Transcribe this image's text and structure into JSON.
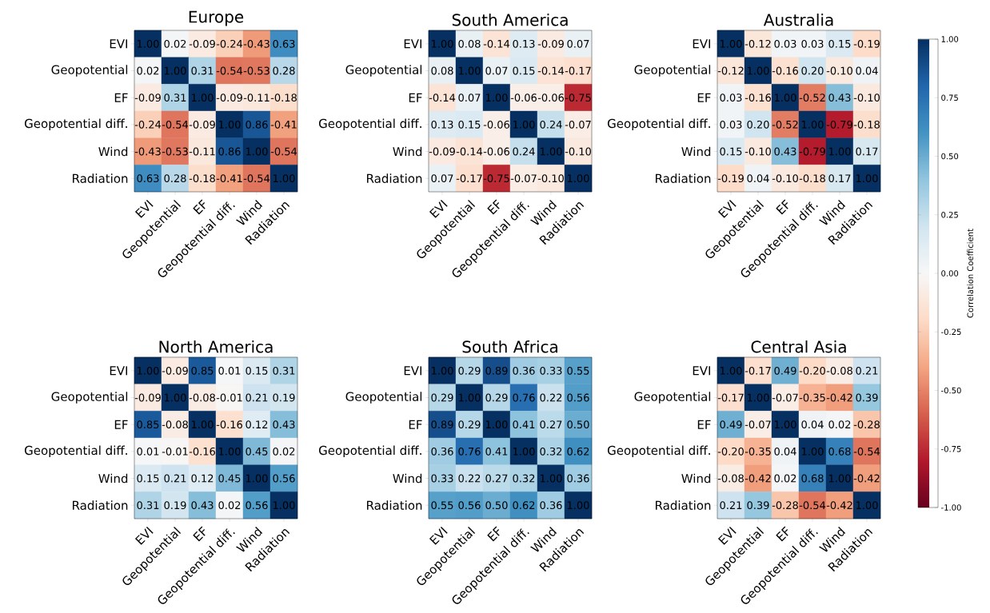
{
  "chart_data": [
    {
      "type": "heatmap",
      "title": "Europe",
      "categories": [
        "EVI",
        "Geopotential",
        "EF",
        "Geopotential diff.",
        "Wind",
        "Radiation"
      ],
      "y_categories": [
        "EVI",
        "Geopotential",
        "EF",
        "Geopotential diff.",
        "Wind",
        "Radiation"
      ],
      "cells": [
        [
          1.0,
          0.02,
          -0.09,
          -0.24,
          -0.43,
          0.63
        ],
        [
          0.02,
          1.0,
          0.31,
          -0.54,
          -0.53,
          0.28
        ],
        [
          -0.09,
          0.31,
          1.0,
          -0.09,
          -0.11,
          -0.18
        ],
        [
          -0.24,
          -0.54,
          -0.09,
          1.0,
          0.86,
          -0.41
        ],
        [
          -0.43,
          -0.53,
          -0.11,
          0.86,
          1.0,
          -0.54
        ],
        [
          0.63,
          0.28,
          -0.18,
          -0.41,
          -0.54,
          1.0
        ]
      ],
      "cell_labels": [
        [
          "1.00",
          "0.02",
          "-0.09",
          "-0.24",
          "-0.43",
          "0.63"
        ],
        [
          "0.02",
          "1.00",
          "0.31",
          "-0.54",
          "-0.53",
          "0.28"
        ],
        [
          "-0.09",
          "0.31",
          "1.00",
          "-0.09",
          "-0.11",
          "-0.18"
        ],
        [
          "-0.24",
          "-0.54",
          "-0.09",
          "1.00",
          "0.86",
          "-0.41"
        ],
        [
          "-0.43",
          "-0.53",
          "-0.11",
          "0.86",
          "1.00",
          "-0.54"
        ],
        [
          "0.63",
          "0.28",
          "-0.18",
          "-0.41",
          "-0.54",
          "1.00"
        ]
      ]
    },
    {
      "type": "heatmap",
      "title": "South America",
      "categories": [
        "EVI",
        "Geopotential",
        "EF",
        "Geopotential diff.",
        "Wind",
        "Radiation"
      ],
      "y_categories": [
        "EVI",
        "Geopotential",
        "EF",
        "Geopotential diff.",
        "Wind",
        "Radiation"
      ],
      "cells": [
        [
          1.0,
          0.08,
          -0.14,
          0.13,
          -0.09,
          0.07
        ],
        [
          0.08,
          1.0,
          0.07,
          0.15,
          -0.14,
          -0.17
        ],
        [
          -0.14,
          0.07,
          1.0,
          -0.06,
          -0.06,
          -0.75
        ],
        [
          0.13,
          0.15,
          -0.06,
          1.0,
          0.24,
          -0.07
        ],
        [
          -0.09,
          -0.14,
          -0.06,
          0.24,
          1.0,
          -0.1
        ],
        [
          0.07,
          -0.17,
          -0.75,
          -0.07,
          -0.1,
          1.0
        ]
      ],
      "cell_labels": [
        [
          "1.00",
          "0.08",
          "-0.14",
          "0.13",
          "-0.09",
          "0.07"
        ],
        [
          "0.08",
          "1.00",
          "0.07",
          "0.15",
          "-0.14",
          "-0.17"
        ],
        [
          "-0.14",
          "0.07",
          "1.00",
          "-0.06",
          "-0.06",
          "-0.75"
        ],
        [
          "0.13",
          "0.15",
          "-0.06",
          "1.00",
          "0.24",
          "-0.07"
        ],
        [
          "-0.09",
          "-0.14",
          "-0.06",
          "0.24",
          "1.00",
          "-0.10"
        ],
        [
          "0.07",
          "-0.17",
          "-0.75",
          "-0.07",
          "-0.10",
          "1.00"
        ]
      ]
    },
    {
      "type": "heatmap",
      "title": "Australia",
      "categories": [
        "EVI",
        "Geopotential",
        "EF",
        "Geopotential diff.",
        "Wind",
        "Radiation"
      ],
      "y_categories": [
        "EVI",
        "Geopotential",
        "EF",
        "Geopotential diff.",
        "Wind",
        "Radiation"
      ],
      "cells": [
        [
          1.0,
          -0.12,
          0.03,
          0.03,
          0.15,
          -0.19
        ],
        [
          -0.12,
          1.0,
          -0.16,
          0.2,
          -0.1,
          0.04
        ],
        [
          0.03,
          -0.16,
          1.0,
          -0.52,
          0.43,
          -0.1
        ],
        [
          0.03,
          0.2,
          -0.52,
          1.0,
          -0.79,
          -0.18
        ],
        [
          0.15,
          -0.1,
          0.43,
          -0.79,
          1.0,
          0.17
        ],
        [
          -0.19,
          0.04,
          -0.1,
          -0.18,
          0.17,
          1.0
        ]
      ],
      "cell_labels": [
        [
          "1.00",
          "-0.12",
          "0.03",
          "0.03",
          "0.15",
          "-0.19"
        ],
        [
          "-0.12",
          "1.00",
          "-0.16",
          "0.20",
          "-0.10",
          "0.04"
        ],
        [
          "0.03",
          "-0.16",
          "1.00",
          "-0.52",
          "0.43",
          "-0.10"
        ],
        [
          "0.03",
          "0.20",
          "-0.52",
          "1.00",
          "-0.79",
          "-0.18"
        ],
        [
          "0.15",
          "-0.10",
          "0.43",
          "-0.79",
          "1.00",
          "0.17"
        ],
        [
          "-0.19",
          "0.04",
          "-0.10",
          "-0.18",
          "0.17",
          "1.00"
        ]
      ]
    },
    {
      "type": "heatmap",
      "title": "North America",
      "categories": [
        "EVI",
        "Geopotential",
        "EF",
        "Geopotential diff.",
        "Wind",
        "Radiation"
      ],
      "y_categories": [
        "EVI",
        "Geopotential",
        "EF",
        "Geopotential diff.",
        "Wind",
        "Radiation"
      ],
      "cells": [
        [
          1.0,
          -0.09,
          0.85,
          0.01,
          0.15,
          0.31
        ],
        [
          -0.09,
          1.0,
          -0.08,
          -0.01,
          0.21,
          0.19
        ],
        [
          0.85,
          -0.08,
          1.0,
          -0.16,
          0.12,
          0.43
        ],
        [
          0.01,
          -0.01,
          -0.16,
          1.0,
          0.45,
          0.02
        ],
        [
          0.15,
          0.21,
          0.12,
          0.45,
          1.0,
          0.56
        ],
        [
          0.31,
          0.19,
          0.43,
          0.02,
          0.56,
          1.0
        ]
      ],
      "cell_labels": [
        [
          "1.00",
          "-0.09",
          "0.85",
          "0.01",
          "0.15",
          "0.31"
        ],
        [
          "-0.09",
          "1.00",
          "-0.08",
          "-0.01",
          "0.21",
          "0.19"
        ],
        [
          "0.85",
          "-0.08",
          "1.00",
          "-0.16",
          "0.12",
          "0.43"
        ],
        [
          "0.01",
          "-0.01",
          "-0.16",
          "1.00",
          "0.45",
          "0.02"
        ],
        [
          "0.15",
          "0.21",
          "0.12",
          "0.45",
          "1.00",
          "0.56"
        ],
        [
          "0.31",
          "0.19",
          "0.43",
          "0.02",
          "0.56",
          "1.00"
        ]
      ]
    },
    {
      "type": "heatmap",
      "title": "South Africa",
      "categories": [
        "EVI",
        "Geopotential",
        "EF",
        "Geopotential diff.",
        "Wind",
        "Radiation"
      ],
      "y_categories": [
        "EVI",
        "Geopotential",
        "EF",
        "Geopotential diff.",
        "Wind",
        "Radiation"
      ],
      "cells": [
        [
          1.0,
          0.29,
          0.89,
          0.36,
          0.33,
          0.55
        ],
        [
          0.29,
          1.0,
          0.29,
          0.76,
          0.22,
          0.56
        ],
        [
          0.89,
          0.29,
          1.0,
          0.41,
          0.27,
          0.5
        ],
        [
          0.36,
          0.76,
          0.41,
          1.0,
          0.32,
          0.62
        ],
        [
          0.33,
          0.22,
          0.27,
          0.32,
          1.0,
          0.36
        ],
        [
          0.55,
          0.56,
          0.5,
          0.62,
          0.36,
          1.0
        ]
      ],
      "cell_labels": [
        [
          "1.00",
          "0.29",
          "0.89",
          "0.36",
          "0.33",
          "0.55"
        ],
        [
          "0.29",
          "1.00",
          "0.29",
          "0.76",
          "0.22",
          "0.56"
        ],
        [
          "0.89",
          "0.29",
          "1.00",
          "0.41",
          "0.27",
          "0.50"
        ],
        [
          "0.36",
          "0.76",
          "0.41",
          "1.00",
          "0.32",
          "0.62"
        ],
        [
          "0.33",
          "0.22",
          "0.27",
          "0.32",
          "1.00",
          "0.36"
        ],
        [
          "0.55",
          "0.56",
          "0.50",
          "0.62",
          "0.36",
          "1.00"
        ]
      ]
    },
    {
      "type": "heatmap",
      "title": "Central Asia",
      "categories": [
        "EVI",
        "Geopotential",
        "EF",
        "Geopotential diff.",
        "Wind",
        "Radiation"
      ],
      "y_categories": [
        "EVI",
        "Geopotential",
        "EF",
        "Geopotential diff.",
        "Wind",
        "Radiation"
      ],
      "clim": [
        -1,
        1
      ],
      "clabel": "Correlation Coefficient",
      "cticks": [
        {
          "value": -1,
          "label": "-1.00"
        },
        {
          "value": -0.75,
          "label": "-0.75"
        },
        {
          "value": -0.5,
          "label": "-0.50"
        },
        {
          "value": -0.25,
          "label": "-0.25"
        },
        {
          "value": 0,
          "label": "0.00"
        },
        {
          "value": 0.25,
          "label": "0.25"
        },
        {
          "value": 0.5,
          "label": "0.50"
        },
        {
          "value": 0.75,
          "label": "0.75"
        },
        {
          "value": 1,
          "label": "1.00"
        }
      ],
      "cells": [
        [
          1.0,
          -0.17,
          0.49,
          -0.2,
          -0.08,
          0.21
        ],
        [
          -0.17,
          1.0,
          -0.07,
          -0.35,
          -0.42,
          0.39
        ],
        [
          0.49,
          -0.07,
          1.0,
          0.04,
          0.02,
          -0.28
        ],
        [
          -0.2,
          -0.35,
          0.04,
          1.0,
          0.68,
          -0.54
        ],
        [
          -0.08,
          -0.42,
          0.02,
          0.68,
          1.0,
          -0.42
        ],
        [
          0.21,
          0.39,
          -0.28,
          -0.54,
          -0.42,
          1.0
        ]
      ],
      "cell_labels": [
        [
          "1.00",
          "-0.17",
          "0.49",
          "-0.20",
          "-0.08",
          "0.21"
        ],
        [
          "-0.17",
          "1.00",
          "-0.07",
          "-0.35",
          "-0.42",
          "0.39"
        ],
        [
          "0.49",
          "-0.07",
          "1.00",
          "0.04",
          "0.02",
          "-0.28"
        ],
        [
          "-0.20",
          "-0.35",
          "0.04",
          "1.00",
          "0.68",
          "-0.54"
        ],
        [
          "-0.08",
          "-0.42",
          "0.02",
          "0.68",
          "1.00",
          "-0.42"
        ],
        [
          "0.21",
          "0.39",
          "-0.28",
          "-0.54",
          "-0.42",
          "1.00"
        ]
      ]
    }
  ]
}
